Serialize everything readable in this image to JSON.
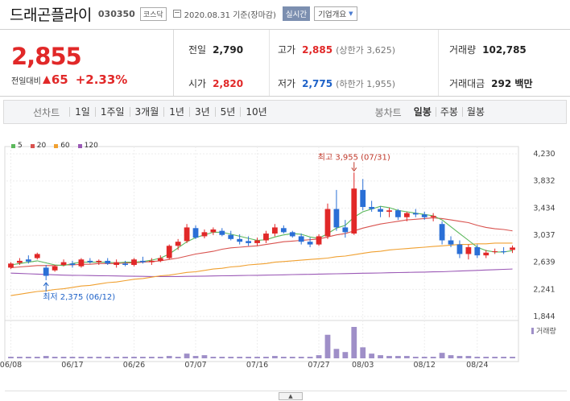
{
  "header": {
    "title": "드래곤플라이",
    "code": "030350",
    "market": "코스닥",
    "date": "2020.08.31 기준(장마감)",
    "realtime_label": "실시간",
    "company_label": "기업개요"
  },
  "quote": {
    "price": "2,855",
    "change_label": "전일대비",
    "change": "65",
    "change_pct": "+2.33%",
    "prev_label": "전일",
    "prev": "2,790",
    "open_label": "시가",
    "open": "2,820",
    "high_label": "고가",
    "high": "2,885",
    "upper_limit": "(상한가 3,625)",
    "low_label": "저가",
    "low": "2,775",
    "lower_limit": "(하한가 1,955)",
    "volume_label": "거래량",
    "volume": "102,785",
    "amount_label": "거래대금",
    "amount": "292 백만"
  },
  "toolbar": {
    "period_label": "선차트",
    "periods": [
      "1일",
      "1주일",
      "3개월",
      "1년",
      "3년",
      "5년",
      "10년"
    ],
    "candle_label": "봉차트",
    "candles": [
      "일봉",
      "주봉",
      "월봉"
    ],
    "active_candle": "일봉"
  },
  "colors": {
    "up": "#e12828",
    "down": "#2a6fd6",
    "ma5": "#5cb85c",
    "ma20": "#d9534f",
    "ma60": "#f0a030",
    "ma120": "#9b59b6",
    "volume": "#9f8fc8"
  },
  "chart_data": {
    "type": "candlestick",
    "legend": [
      "5",
      "20",
      "60",
      "120"
    ],
    "y_ticks": [
      "4,230",
      "3,832",
      "3,434",
      "3,037",
      "2,639",
      "2,241",
      "1,844"
    ],
    "ylim": [
      1844,
      4230
    ],
    "x_ticks": [
      "06/08",
      "06/17",
      "06/26",
      "07/07",
      "07/16",
      "07/27",
      "08/03",
      "08/12",
      "08/24"
    ],
    "high_annotation": "최고 3,955 (07/31)",
    "low_annotation": "최저 2,375 (06/12)",
    "volume_label": "거래량",
    "candles": [
      [
        2560,
        2640,
        2540,
        2620
      ],
      [
        2630,
        2700,
        2600,
        2660
      ],
      [
        2680,
        2740,
        2620,
        2650
      ],
      [
        2700,
        2780,
        2680,
        2760
      ],
      [
        2560,
        2600,
        2375,
        2440
      ],
      [
        2520,
        2600,
        2500,
        2580
      ],
      [
        2600,
        2680,
        2580,
        2640
      ],
      [
        2620,
        2660,
        2560,
        2600
      ],
      [
        2580,
        2700,
        2560,
        2680
      ],
      [
        2660,
        2700,
        2620,
        2640
      ],
      [
        2640,
        2680,
        2600,
        2660
      ],
      [
        2660,
        2700,
        2600,
        2620
      ],
      [
        2600,
        2680,
        2560,
        2640
      ],
      [
        2620,
        2660,
        2580,
        2600
      ],
      [
        2600,
        2700,
        2580,
        2680
      ],
      [
        2660,
        2720,
        2620,
        2640
      ],
      [
        2640,
        2700,
        2600,
        2660
      ],
      [
        2660,
        2740,
        2640,
        2700
      ],
      [
        2700,
        2900,
        2680,
        2880
      ],
      [
        2880,
        2980,
        2820,
        2940
      ],
      [
        2950,
        3200,
        2920,
        3150
      ],
      [
        3140,
        3180,
        2980,
        3000
      ],
      [
        3020,
        3120,
        2990,
        3080
      ],
      [
        3080,
        3150,
        3040,
        3120
      ],
      [
        3100,
        3140,
        3020,
        3040
      ],
      [
        3040,
        3100,
        2960,
        2980
      ],
      [
        2980,
        3050,
        2900,
        2940
      ],
      [
        2950,
        3020,
        2880,
        2920
      ],
      [
        2920,
        3000,
        2880,
        2960
      ],
      [
        2960,
        3100,
        2920,
        3060
      ],
      [
        3060,
        3200,
        3020,
        3150
      ],
      [
        3140,
        3180,
        3060,
        3080
      ],
      [
        3080,
        3100,
        3000,
        3020
      ],
      [
        3020,
        3060,
        2900,
        2940
      ],
      [
        2940,
        3000,
        2860,
        2900
      ],
      [
        2900,
        3050,
        2880,
        3020
      ],
      [
        3020,
        3500,
        2980,
        3420
      ],
      [
        3420,
        3700,
        3100,
        3150
      ],
      [
        3150,
        3260,
        3000,
        3080
      ],
      [
        3060,
        3955,
        3040,
        3720
      ],
      [
        3700,
        3860,
        3400,
        3450
      ],
      [
        3450,
        3540,
        3380,
        3420
      ],
      [
        3420,
        3460,
        3300,
        3380
      ],
      [
        3380,
        3440,
        3300,
        3400
      ],
      [
        3400,
        3420,
        3260,
        3300
      ],
      [
        3300,
        3380,
        3240,
        3360
      ],
      [
        3360,
        3420,
        3300,
        3340
      ],
      [
        3340,
        3380,
        3260,
        3300
      ],
      [
        3300,
        3360,
        3240,
        3320
      ],
      [
        3200,
        3240,
        2900,
        2960
      ],
      [
        2960,
        3020,
        2860,
        2900
      ],
      [
        2900,
        2960,
        2700,
        2760
      ],
      [
        2760,
        2900,
        2680,
        2860
      ],
      [
        2860,
        2900,
        2700,
        2740
      ],
      [
        2740,
        2820,
        2700,
        2780
      ],
      [
        2790,
        2840,
        2760,
        2800
      ],
      [
        2800,
        2860,
        2760,
        2790
      ],
      [
        2820,
        2885,
        2775,
        2855
      ]
    ],
    "ma5": [
      2600,
      2620,
      2640,
      2660,
      2630,
      2600,
      2590,
      2620,
      2640,
      2640,
      2640,
      2640,
      2630,
      2640,
      2640,
      2650,
      2670,
      2700,
      2760,
      2850,
      2940,
      3000,
      3040,
      3080,
      3080,
      3050,
      3020,
      2990,
      2960,
      2970,
      3010,
      3040,
      3060,
      3050,
      3010,
      2990,
      3060,
      3140,
      3180,
      3300,
      3380,
      3420,
      3460,
      3440,
      3400,
      3380,
      3360,
      3340,
      3320,
      3260,
      3160,
      3060,
      2960,
      2860,
      2810,
      2790,
      2790,
      2810
    ],
    "ma20": [
      2560,
      2570,
      2580,
      2590,
      2590,
      2590,
      2600,
      2600,
      2610,
      2610,
      2620,
      2620,
      2620,
      2630,
      2630,
      2640,
      2650,
      2660,
      2680,
      2700,
      2730,
      2760,
      2780,
      2800,
      2830,
      2850,
      2860,
      2870,
      2880,
      2900,
      2920,
      2940,
      2950,
      2960,
      2970,
      2980,
      3010,
      3040,
      3060,
      3100,
      3140,
      3170,
      3200,
      3220,
      3240,
      3260,
      3270,
      3280,
      3290,
      3280,
      3260,
      3240,
      3220,
      3180,
      3150,
      3130,
      3120,
      3100
    ],
    "ma60": [
      2150,
      2170,
      2190,
      2210,
      2220,
      2240,
      2250,
      2270,
      2290,
      2300,
      2320,
      2340,
      2350,
      2370,
      2390,
      2400,
      2420,
      2440,
      2450,
      2470,
      2490,
      2500,
      2520,
      2540,
      2550,
      2570,
      2580,
      2600,
      2610,
      2620,
      2640,
      2650,
      2660,
      2670,
      2680,
      2690,
      2700,
      2720,
      2730,
      2750,
      2770,
      2790,
      2800,
      2820,
      2830,
      2840,
      2850,
      2860,
      2870,
      2880,
      2890,
      2900,
      2900,
      2910,
      2910,
      2920,
      2920,
      2920
    ],
    "ma120": [
      2480,
      2475,
      2470,
      2465,
      2460,
      2455,
      2450,
      2448,
      2446,
      2444,
      2442,
      2440,
      2438,
      2436,
      2434,
      2432,
      2430,
      2430,
      2430,
      2430,
      2432,
      2434,
      2436,
      2438,
      2440,
      2442,
      2444,
      2446,
      2448,
      2450,
      2452,
      2455,
      2458,
      2460,
      2462,
      2465,
      2468,
      2470,
      2472,
      2475,
      2478,
      2480,
      2482,
      2485,
      2488,
      2490,
      2492,
      2495,
      2498,
      2500,
      2505,
      2510,
      2515,
      2520,
      2525,
      2530,
      2535,
      2540
    ],
    "volume": [
      2,
      2,
      2,
      2,
      3,
      2,
      2,
      2,
      2,
      2,
      2,
      2,
      2,
      2,
      2,
      2,
      2,
      2,
      3,
      2,
      6,
      3,
      4,
      2,
      2,
      2,
      2,
      2,
      2,
      2,
      3,
      2,
      2,
      2,
      2,
      4,
      30,
      12,
      8,
      40,
      14,
      6,
      4,
      3,
      3,
      3,
      2,
      2,
      2,
      7,
      4,
      3,
      3,
      2,
      2,
      2,
      2,
      2
    ]
  }
}
